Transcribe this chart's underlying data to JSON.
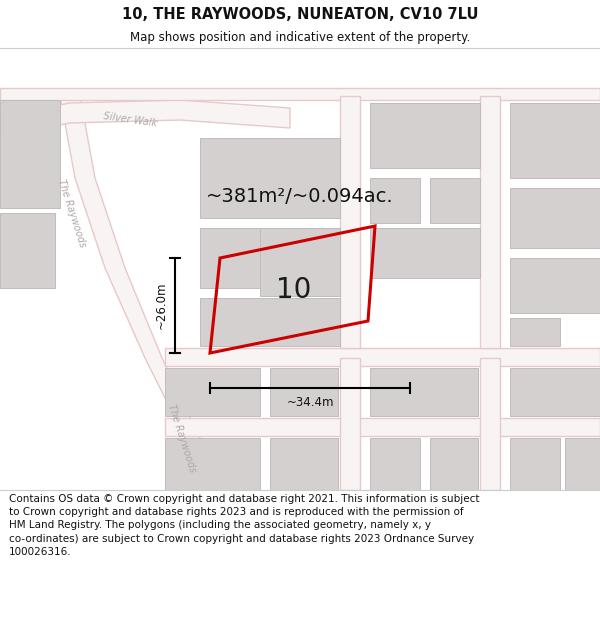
{
  "title": "10, THE RAYWOODS, NUNEATON, CV10 7LU",
  "subtitle": "Map shows position and indicative extent of the property.",
  "footer": "Contains OS data © Crown copyright and database right 2021. This information is subject to Crown copyright and database rights 2023 and is reproduced with the permission of HM Land Registry. The polygons (including the associated geometry, namely x, y co-ordinates) are subject to Crown copyright and database rights 2023 Ordnance Survey 100026316.",
  "area_label": "~381m²/~0.094ac.",
  "width_label": "~34.4m",
  "height_label": "~26.0m",
  "plot_number": "10",
  "map_bg": "#f0eded",
  "building_fill": "#d4d0d0",
  "building_edge": "#c0bcbc",
  "plot_outline_color": "#cc0000",
  "road_color": "#e8c8c8",
  "road_fill": "#f8f4f4",
  "street_label_color": "#b0a8a8",
  "title_color": "#111111",
  "footer_color": "#111111"
}
